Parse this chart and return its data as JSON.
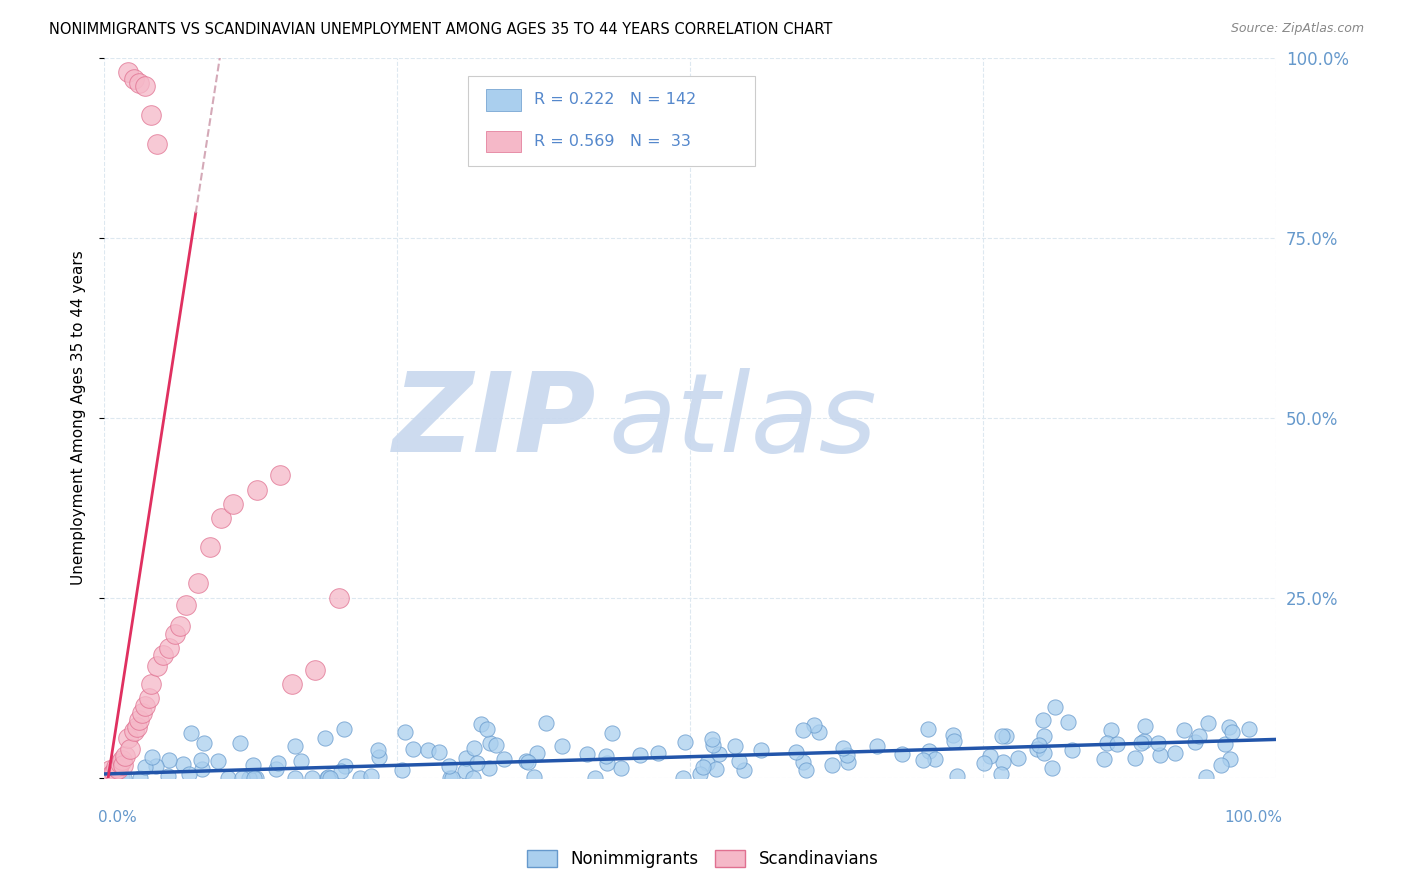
{
  "title": "NONIMMIGRANTS VS SCANDINAVIAN UNEMPLOYMENT AMONG AGES 35 TO 44 YEARS CORRELATION CHART",
  "source": "Source: ZipAtlas.com",
  "ylabel": "Unemployment Among Ages 35 to 44 years",
  "legend_label1": "Nonimmigrants",
  "legend_label2": "Scandinavians",
  "R1": 0.222,
  "N1": 142,
  "R2": 0.569,
  "N2": 33,
  "blue_color": "#aacfee",
  "blue_edge": "#6699cc",
  "pink_color": "#f5b8c8",
  "pink_edge": "#e07090",
  "blue_line_color": "#2255aa",
  "pink_line_color": "#e03060",
  "watermark_zip_color": "#c8d8ee",
  "watermark_atlas_color": "#c8d8ee",
  "grid_color": "#dde8f0",
  "right_axis_color": "#6699cc",
  "legend_text_color": "#5588cc",
  "title_fontsize": 10.5,
  "seed": 42,
  "xlim": [
    0,
    1
  ],
  "ylim": [
    0,
    1
  ],
  "y_ticks": [
    0.0,
    0.25,
    0.5,
    0.75,
    1.0
  ],
  "right_tick_labels": [
    "",
    "25.0%",
    "50.0%",
    "75.0%",
    "100.0%"
  ],
  "pink_line_intercept": -0.035,
  "pink_line_slope": 10.5,
  "blue_line_intercept": 0.005,
  "blue_line_slope": 0.048
}
